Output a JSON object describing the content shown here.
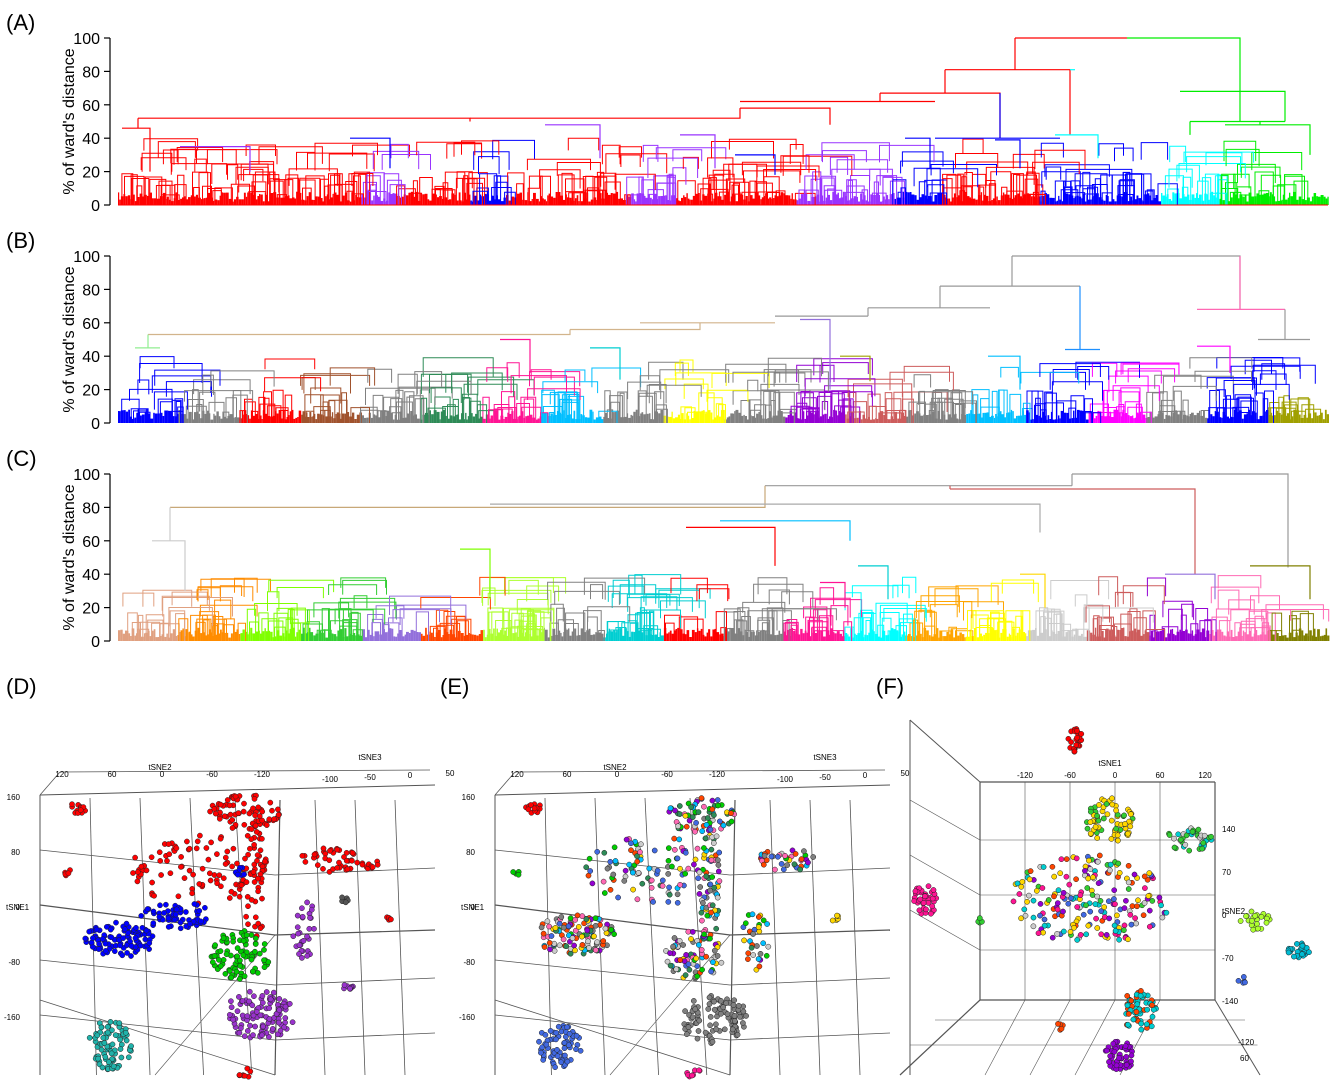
{
  "figure": {
    "panels": [
      {
        "label": "(A)"
      },
      {
        "label": "(B)"
      },
      {
        "label": "(C)"
      },
      {
        "label": "(D)"
      },
      {
        "label": "(E)"
      },
      {
        "label": "(F)"
      }
    ]
  },
  "chart_data": [
    {
      "type": "dendrogram",
      "panel": "(A)",
      "ylabel": "% of ward's distance",
      "ylim": [
        0,
        100
      ],
      "yticks": [
        "0",
        "20",
        "40",
        "60",
        "80",
        "100"
      ],
      "root_merge_height": 100,
      "branches": [
        {
          "color": "#ff0000",
          "height": 52
        },
        {
          "color": "#9933ff",
          "height": 48
        },
        {
          "color": "#0000ff",
          "height": 67
        },
        {
          "color": "#00ffff",
          "height": 81
        },
        {
          "color": "#00ee00",
          "height": 100
        }
      ],
      "leaf_groups": [
        {
          "color": "#ff0000",
          "width": 0.2
        },
        {
          "color": "#9933ff",
          "width": 0.03
        },
        {
          "color": "#ff0000",
          "width": 0.06
        },
        {
          "color": "#0000ff",
          "width": 0.03
        },
        {
          "color": "#ff0000",
          "width": 0.1
        },
        {
          "color": "#9933ff",
          "width": 0.04
        },
        {
          "color": "#ff0000",
          "width": 0.1
        },
        {
          "color": "#9933ff",
          "width": 0.08
        },
        {
          "color": "#0000ff",
          "width": 0.04
        },
        {
          "color": "#ff0000",
          "width": 0.08
        },
        {
          "color": "#0000ff",
          "width": 0.1
        },
        {
          "color": "#00ffff",
          "width": 0.05
        },
        {
          "color": "#00ee00",
          "width": 0.09
        }
      ]
    },
    {
      "type": "dendrogram",
      "panel": "(B)",
      "ylabel": "% of ward's distance",
      "ylim": [
        0,
        100
      ],
      "yticks": [
        "0",
        "20",
        "40",
        "60",
        "80",
        "100"
      ],
      "root_merge_height": 100,
      "leaf_colors": [
        "#0000ff",
        "#808080",
        "#ff0000",
        "#a0522d",
        "#808080",
        "#2e8b57",
        "#ff1493",
        "#00bfff",
        "#808080",
        "#ffff00",
        "#808080",
        "#9400d3",
        "#cd5c5c",
        "#808080",
        "#00bfff",
        "#0000ff",
        "#ff00ff",
        "#808080",
        "#0000ff",
        "#a0a000"
      ]
    },
    {
      "type": "dendrogram",
      "panel": "(C)",
      "ylabel": "% of ward's distance",
      "ylim": [
        0,
        100
      ],
      "yticks": [
        "0",
        "20",
        "40",
        "60",
        "80",
        "100"
      ],
      "root_merge_height": 100,
      "leaf_colors": [
        "#e0a080",
        "#ff8c00",
        "#7fff00",
        "#32cd32",
        "#9370db",
        "#ff4500",
        "#adff2f",
        "#808080",
        "#00ced1",
        "#ff0000",
        "#808080",
        "#ff1493",
        "#00ffff",
        "#ffa500",
        "#ffff00",
        "#cccccc",
        "#cd5c5c",
        "#9400d3",
        "#ff69b4",
        "#808000"
      ]
    },
    {
      "type": "scatter3d",
      "panel": "(D)",
      "axes": {
        "x": "tSNE2",
        "y": "tSNE1",
        "z": "tSNE3"
      },
      "x_ticks": [
        "120",
        "60",
        "0",
        "-60",
        "-120"
      ],
      "y_ticks": [
        "160",
        "80",
        "0",
        "-80",
        "-160"
      ],
      "z_ticks": [
        "-100",
        "-50",
        "0",
        "50"
      ],
      "series_colors": [
        "#ff0000",
        "#0000ff",
        "#00cc00",
        "#9933cc",
        "#20b2aa"
      ]
    },
    {
      "type": "scatter3d",
      "panel": "(E)",
      "axes": {
        "x": "tSNE2",
        "y": "tSNE1",
        "z": "tSNE3"
      },
      "x_ticks": [
        "120",
        "60",
        "0",
        "-60",
        "-120"
      ],
      "y_ticks": [
        "160",
        "80",
        "0",
        "-80",
        "-160"
      ],
      "z_ticks": [
        "-100",
        "-50",
        "0",
        "50"
      ],
      "series_colors": [
        "#ffd700",
        "#00cc00",
        "#ff69b4",
        "#808080",
        "#00bfff",
        "#9400d3",
        "#ff4500",
        "#4169e1",
        "#cccccc",
        "#2e8b57"
      ]
    },
    {
      "type": "scatter3d",
      "panel": "(F)",
      "axes": {
        "x": "tSNE1",
        "y": "tSNE2"
      },
      "x_ticks": [
        "-120",
        "-60",
        "0",
        "60",
        "120"
      ],
      "y_ticks": [
        "140",
        "70",
        "0",
        "-70",
        "-140"
      ],
      "extra_ticks": [
        "-120",
        "60"
      ],
      "series_colors": [
        "#ff1493",
        "#ffd700",
        "#ff4500",
        "#00ced1",
        "#9400d3",
        "#cccccc",
        "#32cd32",
        "#4169e1"
      ]
    }
  ]
}
